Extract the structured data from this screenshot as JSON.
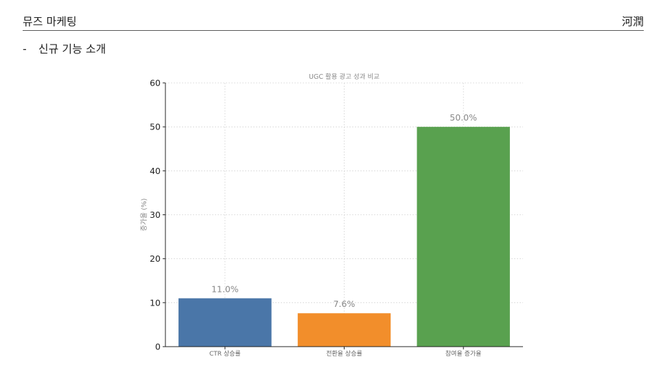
{
  "header": {
    "title": "뮤즈 마케팅",
    "author": "河潤"
  },
  "content": {
    "bullet_dash": "-",
    "bullet_text": "신규 기능 소개"
  },
  "colors": {
    "bar_ctr": "#4a76a8",
    "bar_conversion": "#f28e2b",
    "bar_engagement": "#59a14f",
    "text_dark": "#222222",
    "text_light": "#888888",
    "grid": "#d8d8d8"
  },
  "chart_data": {
    "type": "bar",
    "title": "UGC 활용 광고 성과 비교",
    "xlabel": "",
    "ylabel": "증가율 (%)",
    "ylim": [
      0,
      60
    ],
    "yticks": [
      0,
      10,
      20,
      30,
      40,
      50,
      60
    ],
    "grid": true,
    "categories": [
      "CTR 상승률",
      "전환율 상승률",
      "참여율 증가율"
    ],
    "values": [
      11.0,
      7.6,
      50.0
    ],
    "data_labels": [
      "11.0%",
      "7.6%",
      "50.0%"
    ],
    "bar_colors": [
      "#4a76a8",
      "#f28e2b",
      "#59a14f"
    ]
  }
}
